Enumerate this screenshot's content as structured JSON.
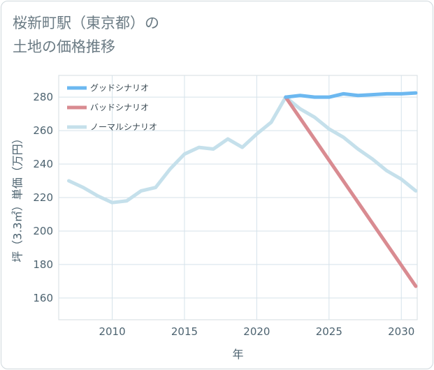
{
  "title": "桜新町駅（東京都）の\n土地の価格推移",
  "chart_data": {
    "type": "line",
    "title": "桜新町駅（東京都）の土地の価格推移",
    "xlabel": "年",
    "ylabel": "坪（3.3㎡）単価（万円）",
    "xlim": [
      2006.3,
      2031.1
    ],
    "ylim": [
      147,
      293
    ],
    "x_ticks": [
      2010,
      2015,
      2020,
      2025,
      2030
    ],
    "y_ticks": [
      160,
      180,
      200,
      220,
      240,
      260,
      280
    ],
    "grid": true,
    "legend_position": "top-left",
    "series": [
      {
        "name": "グッドシナリオ",
        "color": "#6cb8f0",
        "x": [
          2022,
          2023,
          2024,
          2025,
          2026,
          2027,
          2028,
          2029,
          2030,
          2031
        ],
        "y": [
          280,
          281,
          280,
          280,
          282,
          281,
          281.5,
          282,
          282,
          282.5
        ]
      },
      {
        "name": "バッドシナリオ",
        "color": "#d98b91",
        "x": [
          2022,
          2031
        ],
        "y": [
          280,
          167
        ]
      },
      {
        "name": "ノーマルシナリオ",
        "color": "#c5e0eb",
        "x": [
          2007,
          2008,
          2009,
          2010,
          2011,
          2012,
          2013,
          2014,
          2015,
          2016,
          2017,
          2018,
          2019,
          2020,
          2021,
          2022,
          2023,
          2024,
          2025,
          2026,
          2027,
          2028,
          2029,
          2030,
          2031
        ],
        "y": [
          230,
          226,
          221,
          217,
          218,
          224,
          226,
          237,
          246,
          250,
          249,
          255,
          250,
          258,
          265,
          280,
          273,
          268,
          261,
          256,
          249,
          243,
          236,
          231,
          224
        ]
      }
    ]
  }
}
